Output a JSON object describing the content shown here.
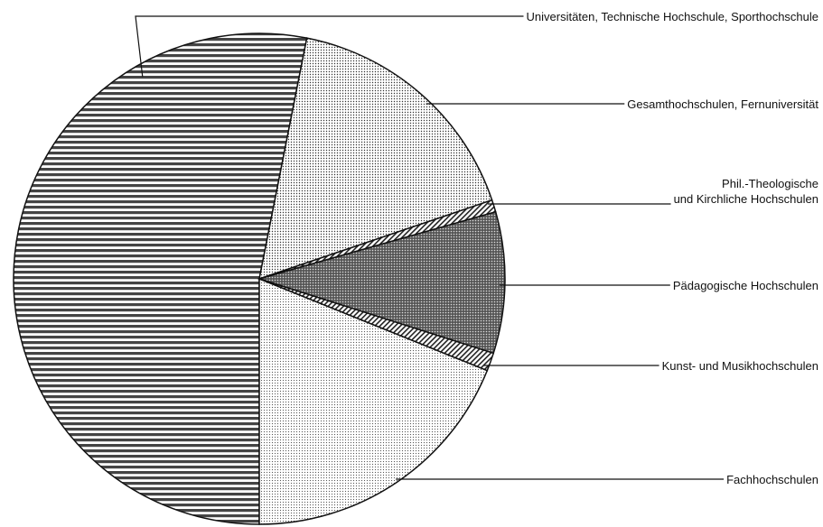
{
  "chart_data": {
    "type": "pie",
    "categories": [
      "Universitäten, Technische Hochschule, Sporthochschule",
      "Gesamthochschulen, Fernuniversität",
      "Phil.-Theologische\nund Kirchliche Hochschulen",
      "Pädagogische Hochschulen",
      "Kunst- und Musikhochschulen",
      "Fachhochschulen"
    ],
    "values": [
      53.1,
      16.7,
      0.8,
      9.3,
      1.2,
      18.9
    ]
  }
}
